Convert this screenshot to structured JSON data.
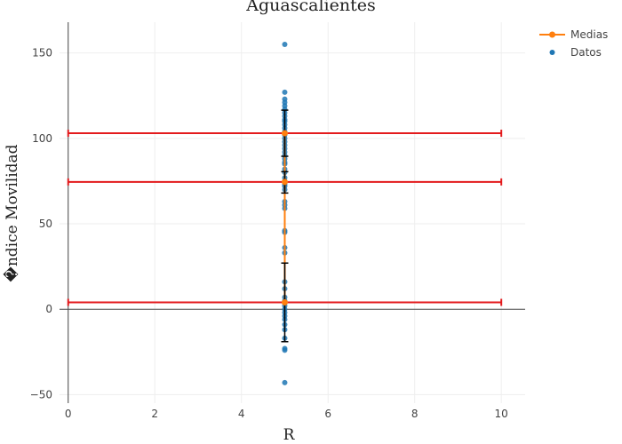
{
  "chart_data": {
    "type": "scatter",
    "title": "Aguascalientes",
    "xlabel": "R",
    "ylabel": "�ndice Movilidad",
    "xlim": [
      -0.2,
      10.55
    ],
    "ylim": [
      -55,
      168
    ],
    "x_ticks": [
      0,
      2,
      4,
      6,
      8,
      10
    ],
    "y_ticks": [
      -50,
      0,
      50,
      100,
      150
    ],
    "grid": true,
    "legend": {
      "placement": "top-right",
      "entries": [
        "Medias",
        "Datos"
      ]
    },
    "colors": {
      "datos": "#1f77b4",
      "medias": "#ff7f0e",
      "reference": "#e31a1c",
      "error_bars": "#000000",
      "grid": "#eeeeee",
      "zero_line": "#444444"
    },
    "series": [
      {
        "name": "Datos",
        "x": 5,
        "y": [
          155,
          127,
          123,
          121,
          119,
          117,
          115,
          113,
          111,
          110,
          108,
          106,
          104,
          102,
          100,
          98,
          96,
          94,
          92,
          90,
          88,
          86,
          85,
          82,
          80,
          77,
          75,
          73,
          72,
          70,
          63,
          61,
          59,
          46,
          45,
          36,
          33,
          16,
          12,
          7,
          5,
          2,
          0,
          -2,
          -4,
          -6,
          -9,
          -12,
          -17,
          -23,
          -24,
          -43
        ]
      },
      {
        "name": "Medias",
        "x": [
          5,
          5,
          5
        ],
        "y": [
          103,
          74.5,
          4
        ],
        "error_bars": [
          {
            "low": 89.5,
            "high": 116.5
          },
          {
            "low": 68,
            "high": 80.5
          },
          {
            "low": -19,
            "high": 27
          }
        ]
      }
    ],
    "reference_lines": [
      {
        "y": 103,
        "x_start": 0,
        "x_end": 10
      },
      {
        "y": 74.5,
        "x_start": 0,
        "x_end": 10
      },
      {
        "y": 4,
        "x_start": 0,
        "x_end": 10
      }
    ]
  }
}
